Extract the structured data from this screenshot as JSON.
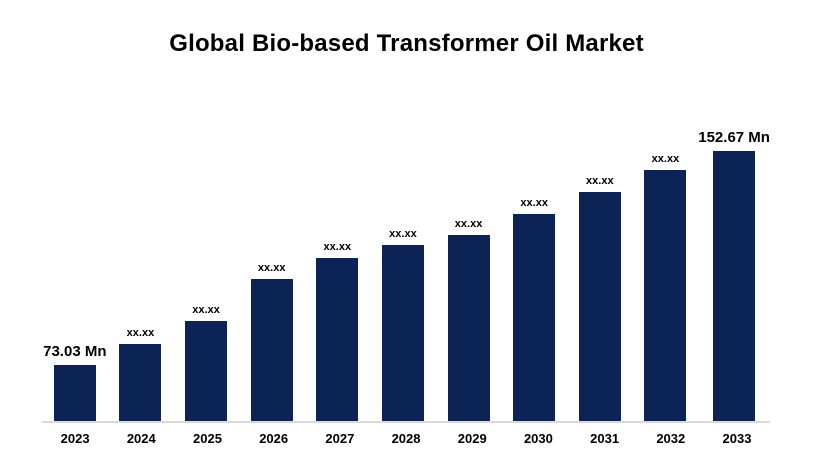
{
  "chart_data": {
    "type": "bar",
    "title": "Global Bio-based Transformer Oil Market",
    "categories": [
      "2023",
      "2024",
      "2025",
      "2026",
      "2027",
      "2028",
      "2029",
      "2030",
      "2031",
      "2032",
      "2033"
    ],
    "values": [
      73.03,
      80.7,
      89.1,
      104.7,
      112.7,
      117.4,
      121.1,
      129.1,
      137.4,
      145.4,
      152.67
    ],
    "bar_labels": [
      "73.03 Mn",
      "xx.xx",
      "xx.xx",
      "xx.xx",
      "xx.xx",
      "xx.xx",
      "xx.xx",
      "xx.xx",
      "xx.xx",
      "xx.xx",
      "152.67 Mn"
    ],
    "unit": "Mn",
    "first_value_label": "73.03 Mn",
    "last_value_label": "152.67 Mn",
    "bar_color": "#0c2455",
    "axis_line_color": "#d9d9d9",
    "ylim": [
      52,
      160
    ],
    "legend": "none",
    "grid": "off",
    "xlabel": "",
    "ylabel": ""
  }
}
